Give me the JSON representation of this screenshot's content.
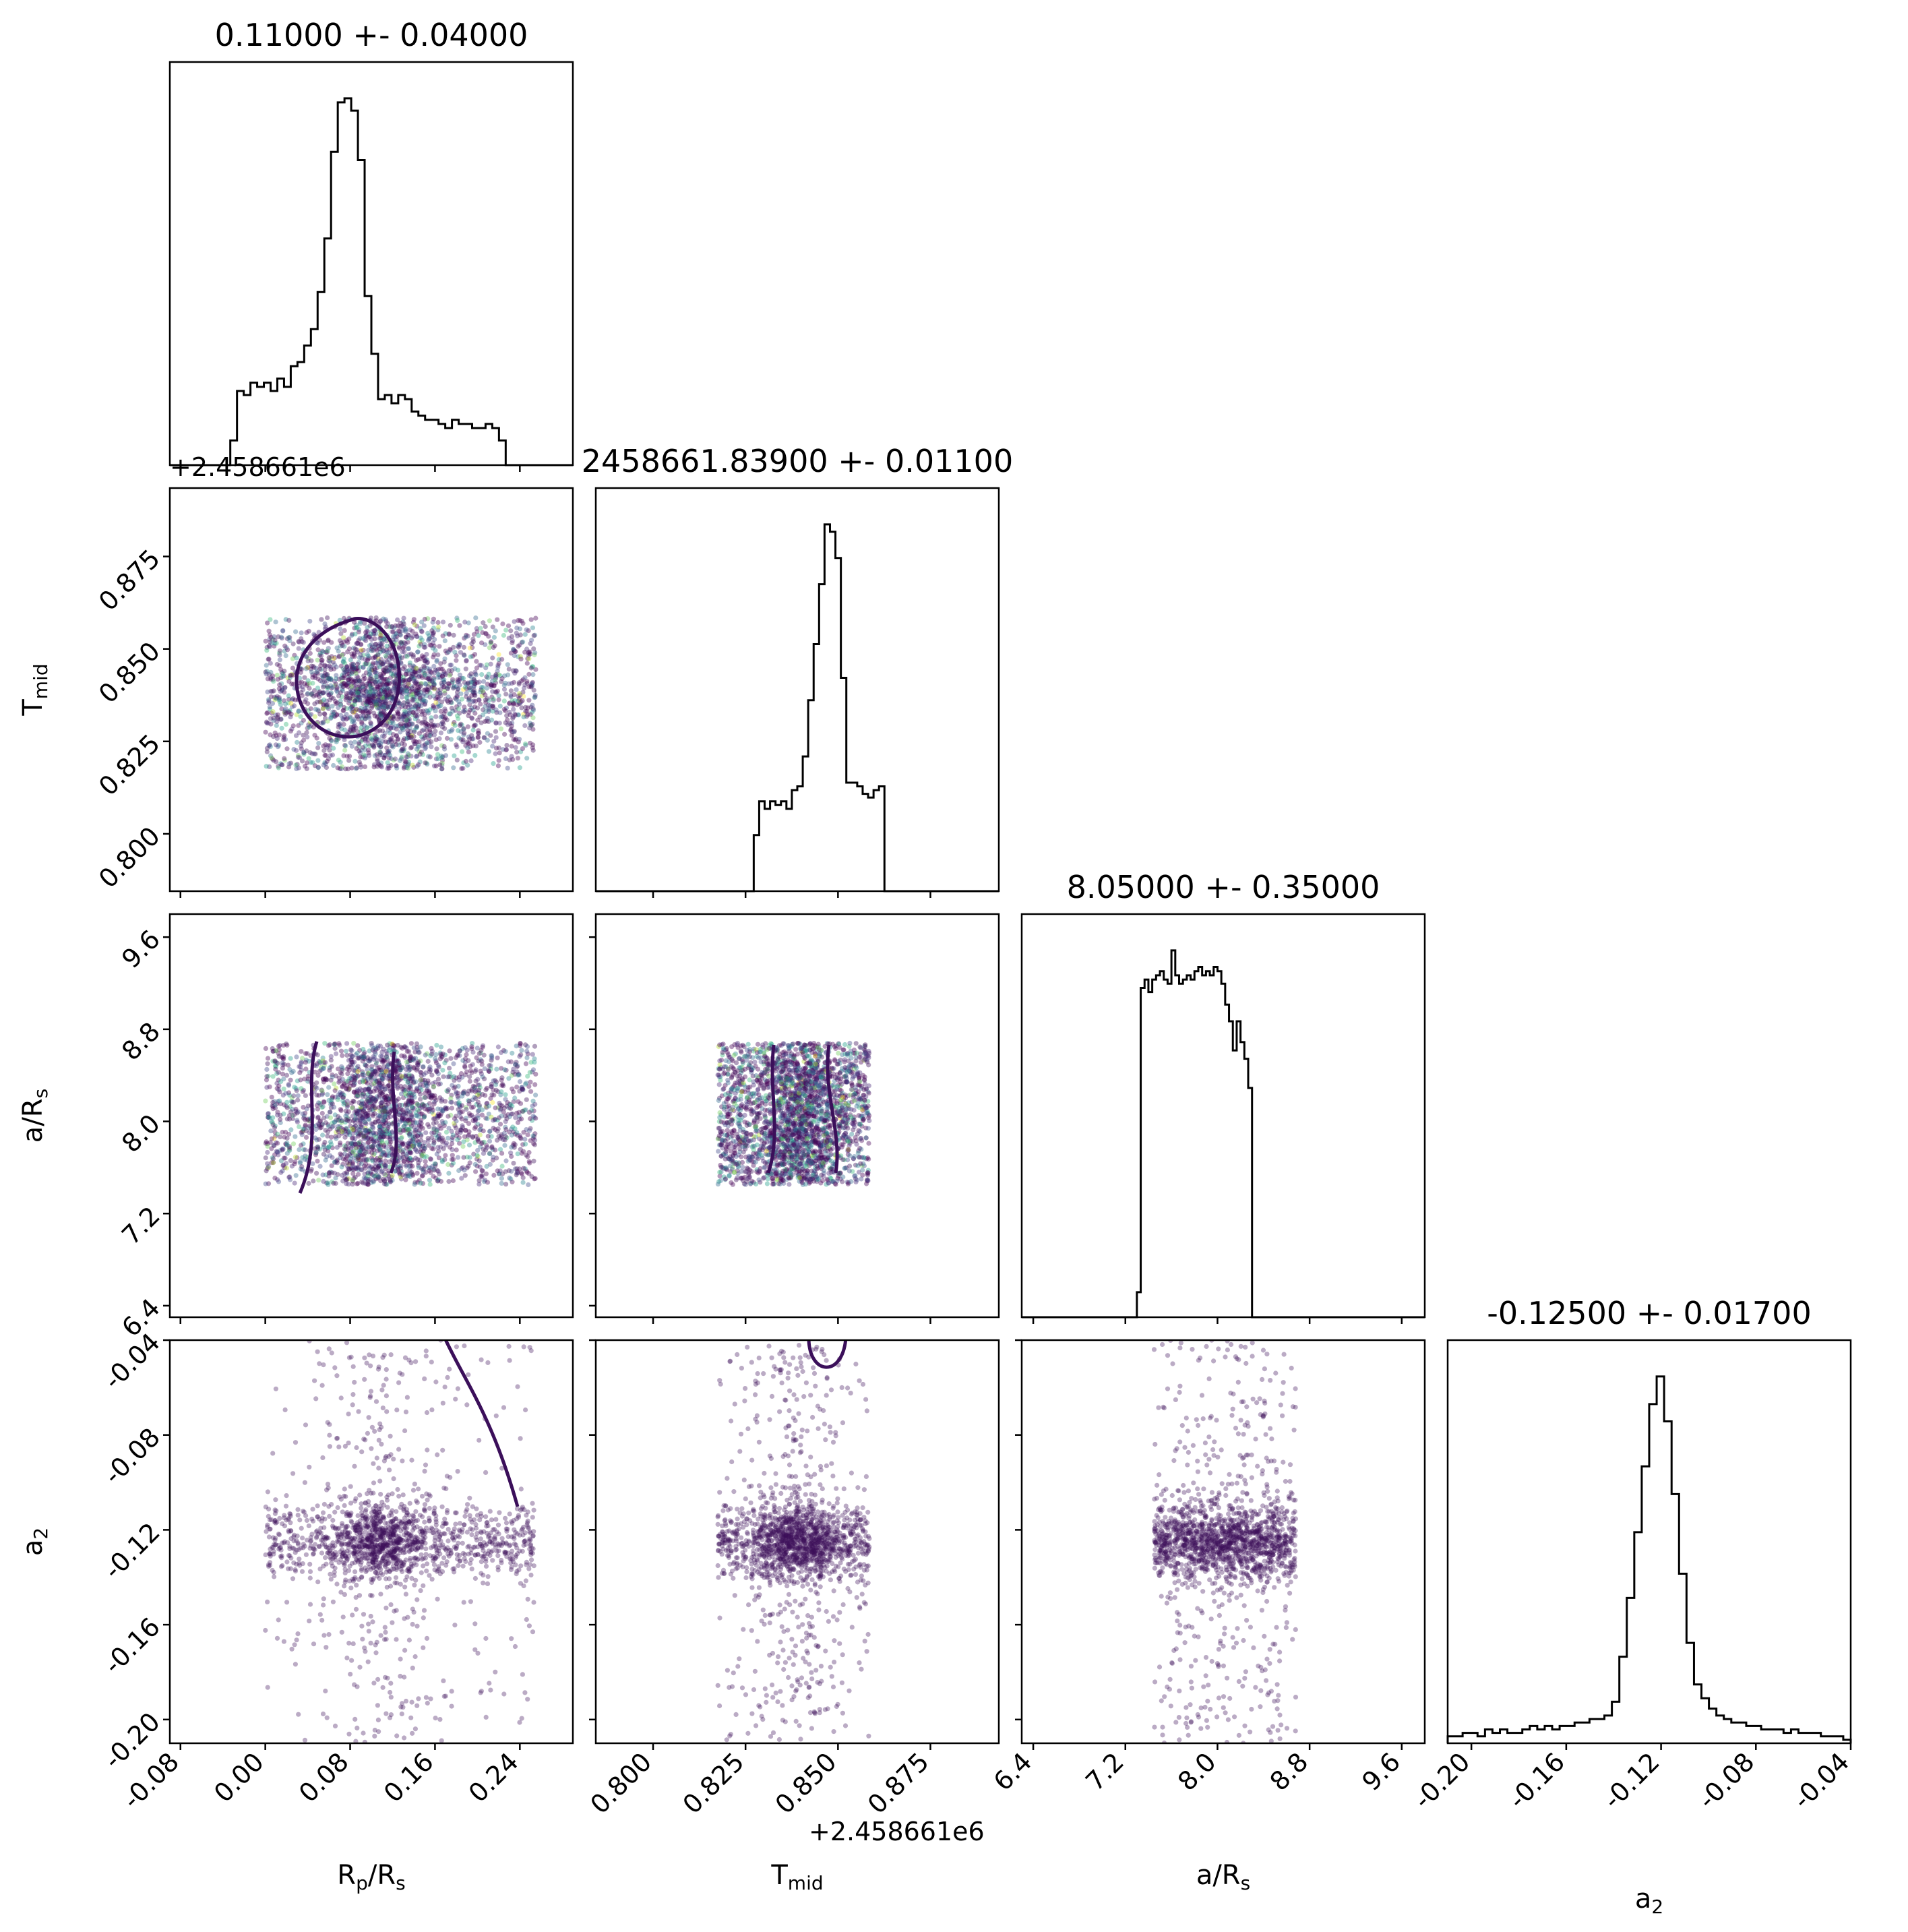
{
  "chart_data": {
    "type": "scatter",
    "subtype": "corner plot (pairwise scatter with 1D histograms)",
    "point_color": "#3b0f5a",
    "hist_color": "#000000",
    "contour_color": "#3b0f5a",
    "parameters": [
      {
        "key": "rprs",
        "label": "R",
        "sub1": "p",
        "label_mid": "/R",
        "sub2": "s",
        "title": "0.11000 +- 0.04000",
        "range": [
          -0.09,
          0.29
        ],
        "ticks": [
          "-0.08",
          "0.00",
          "0.08",
          "0.16",
          "0.24"
        ],
        "tick_values": [
          -0.08,
          0.0,
          0.08,
          0.16,
          0.24
        ],
        "offset_text": "+2.458661e6",
        "uniform_range": [
          0.0,
          0.255
        ],
        "mean": 0.11,
        "sigma": 0.025,
        "hist": [
          0,
          0,
          0,
          0,
          0,
          0,
          0,
          0,
          0,
          6,
          18,
          17,
          20,
          19,
          20,
          18,
          21,
          19,
          24,
          25,
          29,
          33,
          42,
          55,
          76,
          88,
          89,
          86,
          74,
          41,
          27,
          16,
          17,
          15,
          17,
          16,
          13,
          12,
          11,
          11,
          10,
          9,
          11,
          10,
          10,
          9,
          9,
          10,
          9,
          6,
          0,
          0,
          0,
          0,
          0,
          0,
          0,
          0,
          0,
          0
        ]
      },
      {
        "key": "tmid",
        "label": "T",
        "sub1": "mid",
        "label_mid": "",
        "sub2": "",
        "title": "2458661.83900 +- 0.01100",
        "range": [
          0.7845,
          0.8935
        ],
        "ticks": [
          "0.800",
          "0.825",
          "0.850",
          "0.875"
        ],
        "tick_values": [
          0.8,
          0.825,
          0.85,
          0.875
        ],
        "offset_text": "+2.458661e6",
        "uniform_range": [
          0.8175,
          0.8585
        ],
        "mean": 0.839,
        "sigma": 0.006,
        "hist": [
          0,
          0,
          0,
          0,
          0,
          0,
          0,
          0,
          0,
          0,
          0,
          0,
          0,
          0,
          0,
          0,
          0,
          0,
          0,
          0,
          0,
          0,
          0,
          0,
          0,
          0,
          0,
          0,
          0,
          15,
          24,
          22,
          24,
          23,
          24,
          22,
          27,
          28,
          36,
          51,
          66,
          82,
          98,
          96,
          89,
          57,
          29,
          29,
          28,
          26,
          25,
          27,
          28,
          0,
          0,
          0,
          0,
          0,
          0,
          0,
          0,
          0,
          0,
          0,
          0,
          0,
          0,
          0,
          0,
          0,
          0,
          0,
          0,
          0
        ]
      },
      {
        "key": "ars",
        "label": "a/R",
        "sub1": "s",
        "label_mid": "",
        "sub2": "",
        "title": "8.05000 +- 0.35000",
        "range": [
          6.3,
          9.8
        ],
        "ticks": [
          "6.4",
          "7.2",
          "8.0",
          "8.8",
          "9.6"
        ],
        "tick_values": [
          6.4,
          7.2,
          8.0,
          8.8,
          9.6
        ],
        "offset_text": "",
        "uniform_range": [
          7.45,
          8.68
        ],
        "mean": 8.05,
        "sigma": 0.35,
        "hist": [
          0,
          0,
          0,
          0,
          0,
          0,
          0,
          0,
          0,
          0,
          0,
          0,
          0,
          0,
          0,
          0,
          0,
          0,
          0,
          0,
          0,
          0,
          0,
          0,
          0,
          0,
          0,
          0,
          0,
          0,
          6,
          79,
          81,
          78,
          81,
          82,
          83,
          81,
          80,
          88,
          82,
          80,
          81,
          82,
          81,
          83,
          84,
          82,
          83,
          82,
          84,
          83,
          80,
          75,
          71,
          64,
          71,
          66,
          62,
          55,
          0,
          0,
          0,
          0,
          0,
          0,
          0,
          0,
          0,
          0,
          0,
          0,
          0,
          0,
          0,
          0,
          0,
          0,
          0,
          0,
          0,
          0,
          0,
          0,
          0,
          0,
          0,
          0,
          0,
          0,
          0,
          0,
          0,
          0,
          0,
          0,
          0,
          0,
          0,
          0,
          0,
          0,
          0,
          0,
          0
        ]
      },
      {
        "key": "a2",
        "label": "a",
        "sub1": "2",
        "label_mid": "",
        "sub2": "",
        "title": "-0.12500 +- 0.01700",
        "range": [
          -0.21,
          -0.04
        ],
        "ticks": [
          "-0.20",
          "-0.16",
          "-0.12",
          "-0.08",
          "-0.04"
        ],
        "tick_values": [
          -0.2,
          -0.16,
          -0.12,
          -0.08,
          -0.04
        ],
        "offset_text": "",
        "uniform_range": [
          -0.21,
          -0.04
        ],
        "mean": -0.125,
        "sigma": 0.008,
        "hist": [
          2,
          2,
          3,
          3,
          2,
          4,
          3,
          4,
          3,
          3,
          4,
          5,
          4,
          5,
          4,
          5,
          5,
          6,
          6,
          7,
          7,
          8,
          12,
          25,
          42,
          61,
          80,
          98,
          106,
          93,
          72,
          49,
          29,
          17,
          13,
          10,
          8,
          7,
          6,
          6,
          5,
          5,
          4,
          4,
          4,
          3,
          4,
          3,
          3,
          3,
          2,
          2,
          2,
          1
        ]
      }
    ]
  }
}
